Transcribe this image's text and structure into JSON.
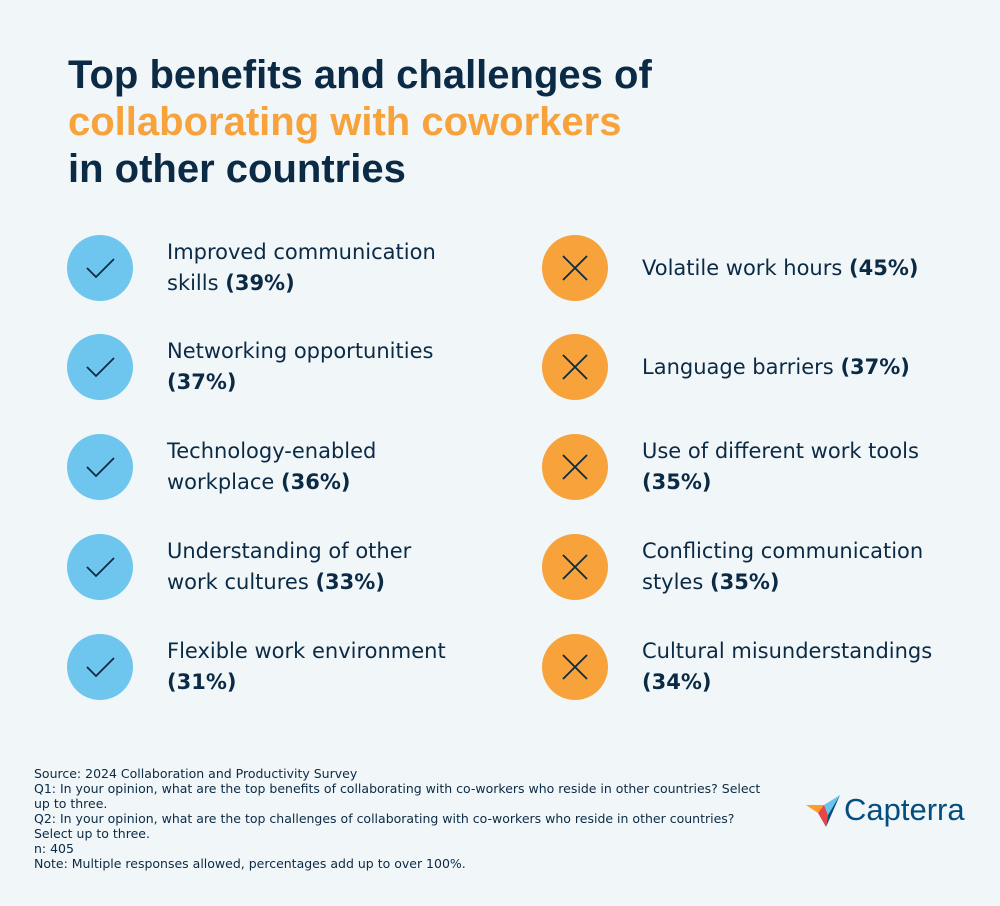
{
  "header": {
    "title_line1": "Top benefits and challenges of",
    "title_line2": "collaborating with coworkers",
    "title_line3": "in other countries"
  },
  "benefits": [
    {
      "label": "Improved communication skills",
      "percent": "(39%)"
    },
    {
      "label": "Networking opportunities",
      "percent": "(37%)"
    },
    {
      "label": "Technology-enabled workplace",
      "percent": "(36%)"
    },
    {
      "label": "Understanding of other work cultures",
      "percent": "(33%)"
    },
    {
      "label": "Flexible work environment",
      "percent": "(31%)"
    }
  ],
  "challenges": [
    {
      "label": "Volatile work hours",
      "percent": "(45%)"
    },
    {
      "label": "Language barriers",
      "percent": "(37%)"
    },
    {
      "label": "Use of different work tools",
      "percent": "(35%)"
    },
    {
      "label": "Conflicting communication styles",
      "percent": "(35%)"
    },
    {
      "label": "Cultural misunderstandings",
      "percent": "(34%)"
    }
  ],
  "footer": {
    "notes": [
      "Source: 2024 Collaboration and Productivity Survey",
      "Q1: In your opinion, what are the top benefits of collaborating with co-workers who reside in other countries? Select up to three.",
      "Q2: In your opinion, what are the top challenges of collaborating with co-workers who reside in other countries? Select up to three.",
      "n: 405",
      "Note: Multiple responses allowed, percentages add up to over 100%."
    ],
    "logo": "Capterra"
  }
}
